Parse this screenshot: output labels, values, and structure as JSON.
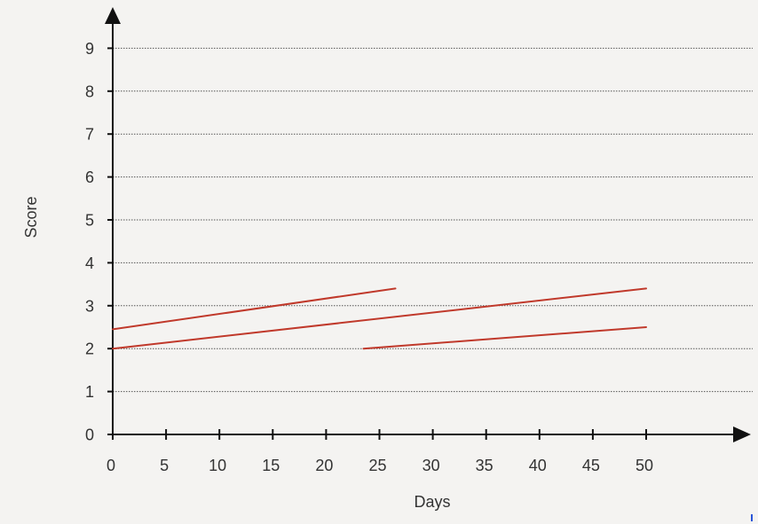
{
  "chart_data": {
    "type": "line",
    "title": "",
    "xlabel": "Days",
    "ylabel": "Score",
    "xlim": [
      0,
      50
    ],
    "ylim": [
      0,
      9
    ],
    "xticks": [
      "0",
      "5",
      "10",
      "15",
      "20",
      "25",
      "30",
      "35",
      "40",
      "45",
      "50"
    ],
    "yticks": [
      "0",
      "1",
      "2",
      "3",
      "4",
      "5",
      "6",
      "7",
      "8",
      "9"
    ],
    "grid": "horizontal-dotted",
    "legend": "none",
    "axis_arrows": true,
    "colors": {
      "series": "#c0392b",
      "axis": "#111111",
      "background": "#f4f3f1"
    },
    "series": [
      {
        "x": [
          0,
          26.5
        ],
        "y": [
          2.45,
          3.4
        ]
      },
      {
        "x": [
          0,
          50
        ],
        "y": [
          2.0,
          3.4
        ]
      },
      {
        "x": [
          23.5,
          50
        ],
        "y": [
          2.0,
          2.5
        ]
      }
    ]
  }
}
